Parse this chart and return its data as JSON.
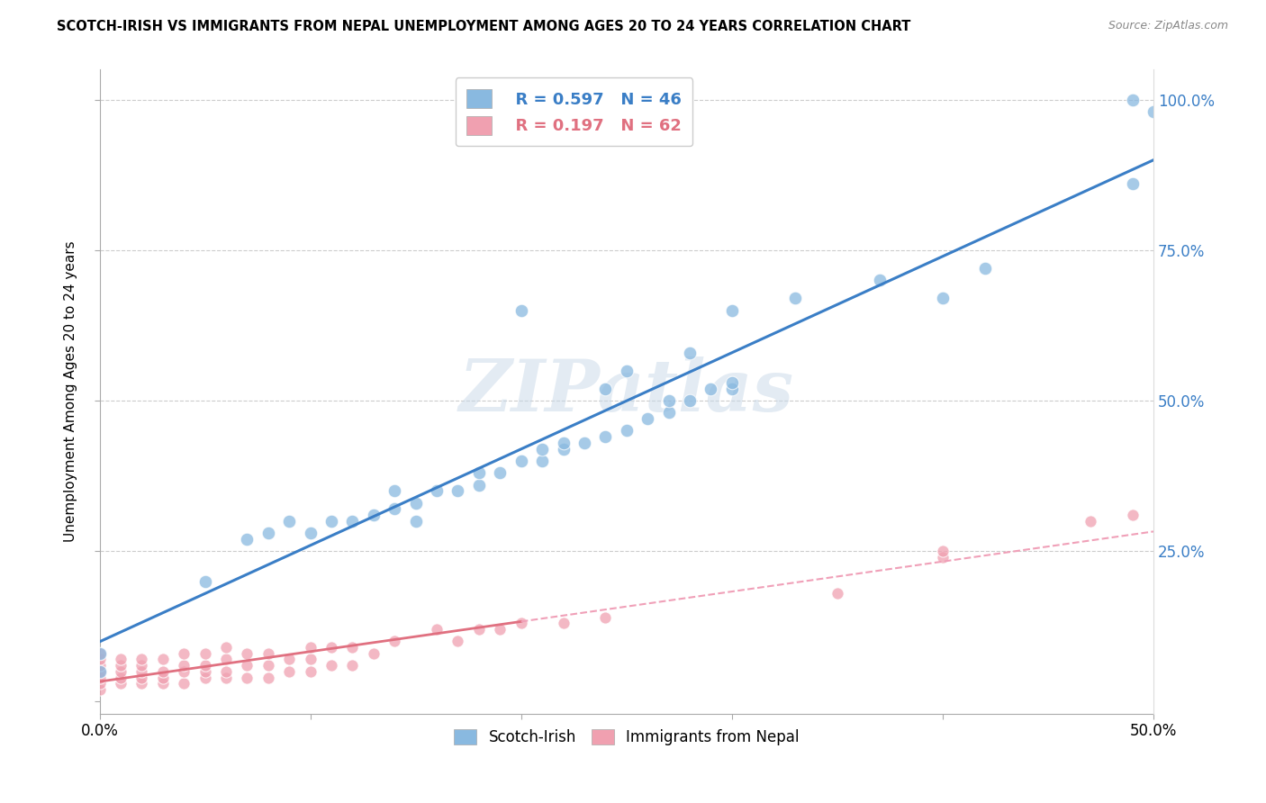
{
  "title": "SCOTCH-IRISH VS IMMIGRANTS FROM NEPAL UNEMPLOYMENT AMONG AGES 20 TO 24 YEARS CORRELATION CHART",
  "source": "Source: ZipAtlas.com",
  "ylabel": "Unemployment Among Ages 20 to 24 years",
  "xlim": [
    0.0,
    0.5
  ],
  "ylim": [
    -0.02,
    1.05
  ],
  "xticks": [
    0.0,
    0.1,
    0.2,
    0.3,
    0.4,
    0.5
  ],
  "xticklabels": [
    "0.0%",
    "",
    "",
    "",
    "",
    "50.0%"
  ],
  "yticks": [
    0.0,
    0.25,
    0.5,
    0.75,
    1.0
  ],
  "yticklabels_right": [
    "",
    "25.0%",
    "50.0%",
    "75.0%",
    "100.0%"
  ],
  "r_scotch": 0.597,
  "n_scotch": 46,
  "r_nepal": 0.197,
  "n_nepal": 62,
  "scotch_color": "#89b9e0",
  "nepal_color": "#f0a0b0",
  "scotch_line_color": "#3a7ec6",
  "nepal_line_color": "#e07080",
  "nepal_dashed_color": "#f0a0b8",
  "scotch_x": [
    0.0,
    0.0,
    0.05,
    0.07,
    0.08,
    0.09,
    0.1,
    0.11,
    0.12,
    0.13,
    0.14,
    0.14,
    0.15,
    0.15,
    0.16,
    0.17,
    0.18,
    0.18,
    0.19,
    0.2,
    0.21,
    0.21,
    0.22,
    0.22,
    0.23,
    0.24,
    0.25,
    0.26,
    0.27,
    0.27,
    0.28,
    0.29,
    0.3,
    0.3,
    0.2,
    0.24,
    0.25,
    0.28,
    0.3,
    0.33,
    0.37,
    0.4,
    0.42,
    0.49,
    0.49,
    0.5
  ],
  "scotch_y": [
    0.05,
    0.08,
    0.2,
    0.27,
    0.28,
    0.3,
    0.28,
    0.3,
    0.3,
    0.31,
    0.32,
    0.35,
    0.3,
    0.33,
    0.35,
    0.35,
    0.36,
    0.38,
    0.38,
    0.4,
    0.4,
    0.42,
    0.42,
    0.43,
    0.43,
    0.44,
    0.45,
    0.47,
    0.48,
    0.5,
    0.5,
    0.52,
    0.52,
    0.53,
    0.65,
    0.52,
    0.55,
    0.58,
    0.65,
    0.67,
    0.7,
    0.67,
    0.72,
    0.86,
    1.0,
    0.98
  ],
  "nepal_x": [
    0.0,
    0.0,
    0.0,
    0.0,
    0.0,
    0.0,
    0.0,
    0.01,
    0.01,
    0.01,
    0.01,
    0.01,
    0.02,
    0.02,
    0.02,
    0.02,
    0.02,
    0.03,
    0.03,
    0.03,
    0.03,
    0.04,
    0.04,
    0.04,
    0.04,
    0.05,
    0.05,
    0.05,
    0.05,
    0.06,
    0.06,
    0.06,
    0.06,
    0.07,
    0.07,
    0.07,
    0.08,
    0.08,
    0.08,
    0.09,
    0.09,
    0.1,
    0.1,
    0.1,
    0.11,
    0.11,
    0.12,
    0.12,
    0.13,
    0.14,
    0.16,
    0.17,
    0.18,
    0.19,
    0.2,
    0.22,
    0.24,
    0.35,
    0.4,
    0.4,
    0.47,
    0.49
  ],
  "nepal_y": [
    0.02,
    0.03,
    0.04,
    0.05,
    0.06,
    0.07,
    0.08,
    0.03,
    0.04,
    0.05,
    0.06,
    0.07,
    0.03,
    0.04,
    0.05,
    0.06,
    0.07,
    0.03,
    0.04,
    0.05,
    0.07,
    0.03,
    0.05,
    0.06,
    0.08,
    0.04,
    0.05,
    0.06,
    0.08,
    0.04,
    0.05,
    0.07,
    0.09,
    0.04,
    0.06,
    0.08,
    0.04,
    0.06,
    0.08,
    0.05,
    0.07,
    0.05,
    0.07,
    0.09,
    0.06,
    0.09,
    0.06,
    0.09,
    0.08,
    0.1,
    0.12,
    0.1,
    0.12,
    0.12,
    0.13,
    0.13,
    0.14,
    0.18,
    0.24,
    0.25,
    0.3,
    0.31
  ],
  "watermark_text": "ZIPatlas"
}
